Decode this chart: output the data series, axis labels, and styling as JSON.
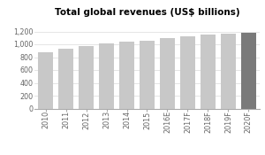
{
  "categories": [
    "2010",
    "2011",
    "2012",
    "2013",
    "2014",
    "2015",
    "2016E",
    "2017F",
    "2018F",
    "2019F",
    "2020F"
  ],
  "values": [
    870,
    925,
    975,
    1020,
    1040,
    1055,
    1100,
    1120,
    1145,
    1165,
    1175
  ],
  "bar_colors": [
    "#c8c8c8",
    "#c8c8c8",
    "#c8c8c8",
    "#c8c8c8",
    "#c8c8c8",
    "#c8c8c8",
    "#c8c8c8",
    "#c8c8c8",
    "#c8c8c8",
    "#c8c8c8",
    "#7a7a7a"
  ],
  "title_bold": "Total global revenues",
  "title_normal": " (US$ billions)",
  "ylim": [
    0,
    1400
  ],
  "yticks": [
    0,
    200,
    400,
    600,
    800,
    1000,
    1200
  ],
  "ytick_labels": [
    "0",
    "200",
    "400",
    "600",
    "800",
    "1,000",
    "1,200"
  ],
  "title_fontsize": 7.5,
  "tick_fontsize": 5.8,
  "bar_width": 0.75,
  "background_color": "#ffffff",
  "grid_color": "#e0e0e0",
  "spine_color": "#aaaaaa",
  "tick_color": "#666666"
}
